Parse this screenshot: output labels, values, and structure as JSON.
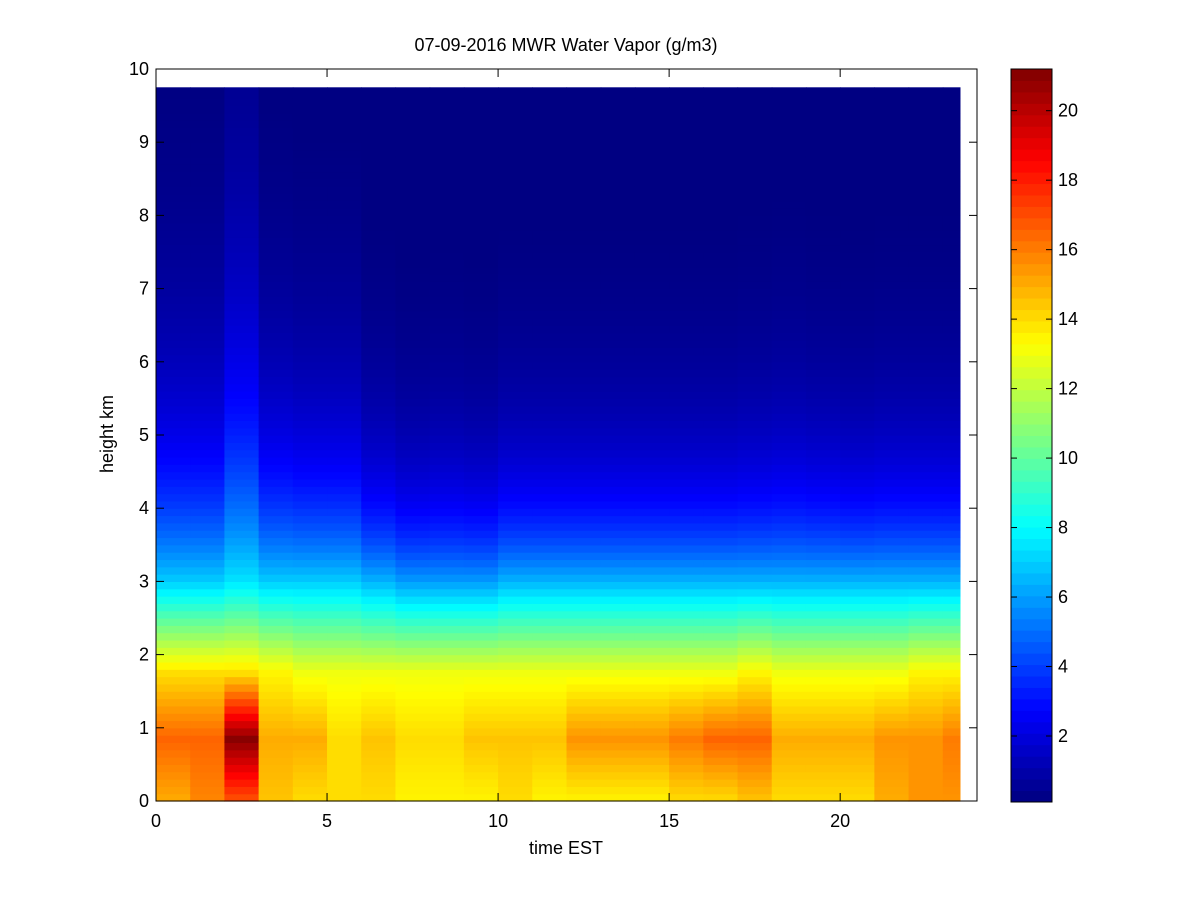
{
  "chart_data": {
    "type": "heatmap",
    "title": "07-09-2016 MWR Water Vapor (g/m3)",
    "xlabel": "time EST",
    "ylabel": "height km",
    "xlim": [
      0,
      24
    ],
    "ylim": [
      0,
      10
    ],
    "x_ticks": [
      0,
      5,
      10,
      15,
      20
    ],
    "y_ticks": [
      0,
      1,
      2,
      3,
      4,
      5,
      6,
      7,
      8,
      9,
      10
    ],
    "colormap": "jet",
    "colorbar": {
      "clim": [
        0.1,
        21.2
      ],
      "ticks": [
        2,
        4,
        6,
        8,
        10,
        12,
        14,
        16,
        18,
        20
      ]
    },
    "grid": false,
    "x_start": 0,
    "x_step": 1,
    "times": [
      0.5,
      1.5,
      2.5,
      3.5,
      4.5,
      5.5,
      6.5,
      7.5,
      8.5,
      9.5,
      10.5,
      11.5,
      12.5,
      13.5,
      14.5,
      15.5,
      16.5,
      17.5,
      18.5,
      19.5,
      20.5,
      21.5,
      22.5,
      23.5
    ],
    "x_end": 23.5,
    "y_top": 9.75,
    "heights": [
      0.05,
      0.15,
      0.25,
      0.35,
      0.45,
      0.55,
      0.65,
      0.75,
      0.85,
      0.95,
      1.05,
      1.15,
      1.25,
      1.35,
      1.45,
      1.55,
      1.65,
      1.75,
      1.85,
      1.95,
      2.05,
      2.15,
      2.25,
      2.35,
      2.45,
      2.55,
      2.65,
      2.75,
      2.85,
      2.95,
      3.05,
      3.15,
      3.25,
      3.35,
      3.45,
      3.55,
      3.65,
      3.75,
      3.85,
      3.95,
      4.05,
      4.15,
      4.25,
      4.35,
      4.45,
      4.55,
      4.65,
      4.75,
      4.85,
      4.95,
      5.05,
      5.15,
      5.25,
      5.35,
      5.45,
      5.55,
      5.65,
      5.75,
      5.85,
      5.95,
      6.05,
      6.15,
      6.25,
      6.35,
      6.45,
      6.55,
      6.65,
      6.75,
      6.85,
      6.95,
      7.05,
      7.15,
      7.25,
      7.35,
      7.45,
      7.55,
      7.65,
      7.75,
      7.85,
      7.95,
      8.05,
      8.15,
      8.25,
      8.35,
      8.45,
      8.55,
      8.65,
      8.75,
      8.85,
      8.95,
      9.05,
      9.15,
      9.25,
      9.35,
      9.45,
      9.55,
      9.65
    ],
    "surface_values": [
      15.0,
      15.8,
      16.8,
      14.5,
      14.0,
      14.0,
      14.0,
      13.5,
      13.5,
      13.5,
      14.0,
      13.5,
      13.5,
      13.5,
      13.5,
      14.0,
      14.0,
      14.5,
      14.0,
      14.0,
      14.0,
      15.0,
      15.5,
      15.5
    ],
    "peak_values": [
      16.5,
      16.5,
      21.0,
      15.0,
      15.0,
      14.0,
      14.5,
      14.0,
      14.0,
      14.5,
      14.5,
      14.5,
      15.5,
      15.5,
      15.5,
      16.0,
      16.5,
      16.5,
      15.0,
      15.0,
      15.0,
      15.5,
      15.5,
      16.0
    ],
    "mid_values": [
      14.0,
      14.0,
      14.0,
      13.5,
      13.0,
      13.0,
      13.0,
      13.0,
      13.0,
      13.0,
      13.0,
      13.0,
      13.0,
      13.0,
      13.0,
      13.0,
      13.0,
      13.5,
      13.0,
      13.0,
      13.0,
      13.0,
      13.5,
      13.5
    ],
    "upper_values": [
      7.0,
      7.0,
      7.5,
      7.0,
      7.0,
      7.0,
      6.5,
      6.0,
      6.0,
      6.0,
      6.5,
      6.5,
      6.5,
      6.5,
      6.5,
      6.5,
      6.5,
      6.5,
      6.5,
      6.5,
      6.5,
      6.5,
      6.5,
      6.5
    ],
    "scale_height_km": [
      1.8,
      1.8,
      2.5,
      1.7,
      1.6,
      1.6,
      1.3,
      1.2,
      1.25,
      1.2,
      1.3,
      1.3,
      1.3,
      1.3,
      1.3,
      1.3,
      1.3,
      1.35,
      1.4,
      1.35,
      1.3,
      1.35,
      1.35,
      1.35
    ]
  }
}
